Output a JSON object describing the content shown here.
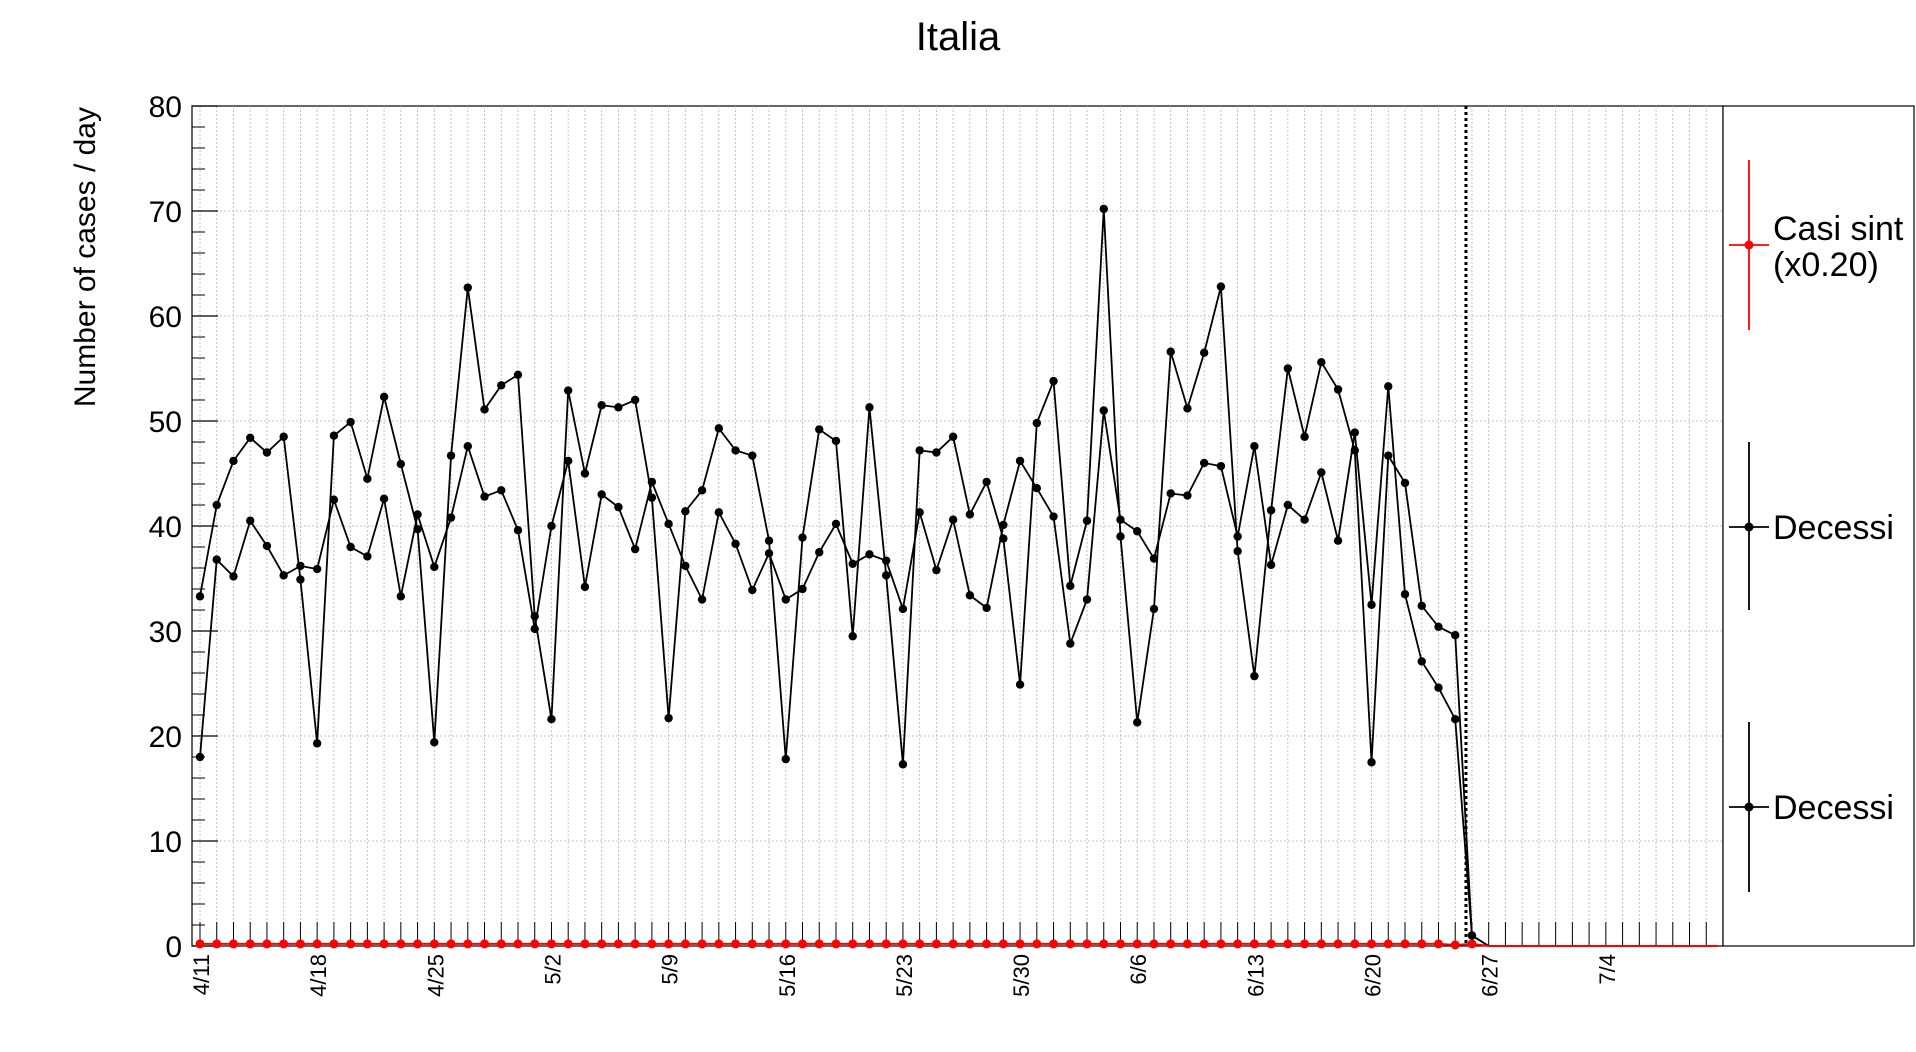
{
  "chart_data": {
    "type": "line",
    "title": "Italia",
    "ylabel": "Number of cases / day",
    "xlabel": "",
    "ylim": [
      0,
      80
    ],
    "yticks": [
      0,
      10,
      20,
      30,
      40,
      50,
      60,
      70,
      80
    ],
    "x_start": "4/11",
    "x_end": "7/11",
    "x_tick_labels": [
      "4/11",
      "4/18",
      "4/25",
      "5/2",
      "5/9",
      "5/16",
      "5/23",
      "5/30",
      "6/6",
      "6/13",
      "6/20",
      "6/27",
      "7/4"
    ],
    "grid": true,
    "marker_line_date": "6/26",
    "legend_position": "right",
    "legend": [
      {
        "label_line1": "Casi sint",
        "label_line2": "(x0.20)",
        "color": "#ff0000"
      },
      {
        "label_line1": "Decessi",
        "label_line2": "",
        "color": "#000000"
      },
      {
        "label_line1": "Decessi",
        "label_line2": "",
        "color": "#000000"
      }
    ],
    "series": [
      {
        "color": "#000000",
        "values": [
          33.3,
          42.0,
          46.2,
          48.4,
          47.0,
          48.5,
          34.9,
          19.3,
          48.6,
          49.9,
          44.5,
          52.3,
          45.9,
          39.7,
          19.4,
          46.7,
          62.7,
          51.1,
          53.4,
          54.4,
          31.4,
          21.6,
          52.9,
          45.0,
          51.5,
          51.3,
          52.0,
          42.7,
          21.7,
          41.4,
          43.4,
          49.3,
          47.2,
          46.7,
          38.6,
          17.8,
          38.9,
          49.2,
          48.1,
          29.5,
          51.3,
          35.3,
          17.3,
          47.2,
          47.0,
          48.5,
          41.1,
          44.2,
          38.8,
          24.9,
          49.8,
          53.8,
          34.3,
          40.5,
          70.2,
          39.0,
          21.3,
          32.1,
          56.6,
          51.2,
          56.5,
          62.8,
          37.6,
          25.7,
          41.5,
          55.0,
          48.5,
          55.6,
          53.0,
          47.2,
          17.5,
          46.7,
          44.1,
          32.4,
          30.4,
          29.6,
          1.0,
          0,
          0
        ]
      },
      {
        "color": "#000000",
        "values": [
          18.0,
          36.8,
          35.2,
          40.5,
          38.1,
          35.3,
          36.2,
          35.9,
          42.5,
          38.0,
          37.1,
          42.6,
          33.3,
          41.1,
          36.1,
          40.8,
          47.6,
          42.8,
          43.4,
          39.6,
          30.2,
          40.0,
          46.2,
          34.2,
          43.0,
          41.8,
          37.8,
          44.2,
          40.2,
          36.2,
          33.0,
          41.3,
          38.3,
          33.9,
          37.4,
          33.0,
          34.0,
          37.5,
          40.2,
          36.4,
          37.3,
          36.7,
          32.1,
          41.3,
          35.8,
          40.6,
          33.4,
          32.2,
          40.1,
          46.2,
          43.6,
          40.9,
          28.8,
          33.0,
          51.0,
          40.6,
          39.5,
          36.9,
          43.1,
          42.9,
          46.0,
          45.7,
          39.0,
          47.6,
          36.3,
          42.0,
          40.6,
          45.1,
          38.6,
          48.9,
          32.5,
          53.3,
          33.5,
          27.1,
          24.6,
          21.6,
          1.0,
          0,
          0
        ]
      },
      {
        "color": "#ff0000",
        "values": [
          0.2,
          0.2,
          0.2,
          0.2,
          0.2,
          0.2,
          0.2,
          0.2,
          0.2,
          0.2,
          0.2,
          0.2,
          0.2,
          0.2,
          0.2,
          0.2,
          0.2,
          0.2,
          0.2,
          0.2,
          0.2,
          0.2,
          0.2,
          0.2,
          0.2,
          0.2,
          0.2,
          0.2,
          0.2,
          0.2,
          0.2,
          0.2,
          0.2,
          0.2,
          0.2,
          0.2,
          0.2,
          0.2,
          0.2,
          0.2,
          0.2,
          0.2,
          0.2,
          0.2,
          0.2,
          0.2,
          0.2,
          0.2,
          0.2,
          0.2,
          0.2,
          0.2,
          0.2,
          0.2,
          0.2,
          0.2,
          0.2,
          0.2,
          0.2,
          0.2,
          0.2,
          0.2,
          0.2,
          0.2,
          0.2,
          0.2,
          0.2,
          0.2,
          0.2,
          0.2,
          0.2,
          0.2,
          0.2,
          0.2,
          0.2,
          0.1,
          0.2,
          0,
          0
        ]
      }
    ]
  }
}
